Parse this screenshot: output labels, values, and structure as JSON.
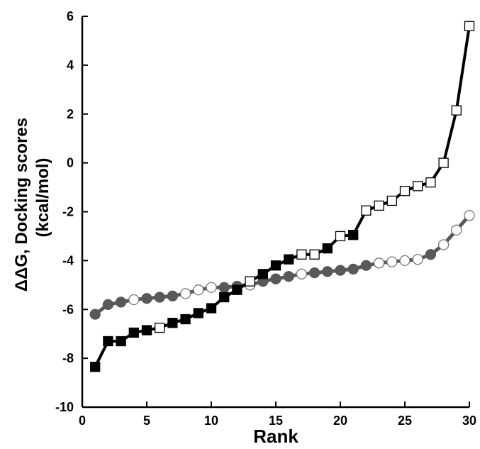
{
  "chart_data": {
    "type": "line",
    "xlabel": "Rank",
    "ylabel_line1": "ΔΔG, Docking scores",
    "ylabel_line2": "(kcal/mol)",
    "xlim": [
      0,
      30
    ],
    "ylim": [
      -10,
      6
    ],
    "xticks": [
      0,
      5,
      10,
      15,
      20,
      25,
      30
    ],
    "yticks": [
      -10,
      -8,
      -6,
      -4,
      -2,
      0,
      2,
      4,
      6
    ],
    "grid": false,
    "series": [
      {
        "color": "#000000",
        "marker": "square",
        "x": [
          1,
          2,
          3,
          4,
          5,
          6,
          7,
          8,
          9,
          10,
          11,
          12,
          13,
          14,
          15,
          16,
          17,
          18,
          19,
          20,
          21,
          22,
          23,
          24,
          25,
          26,
          27,
          28,
          29,
          30
        ],
        "y": [
          -8.35,
          -7.3,
          -7.3,
          -6.95,
          -6.85,
          -6.75,
          -6.55,
          -6.4,
          -6.15,
          -5.95,
          -5.5,
          -5.2,
          -4.85,
          -4.55,
          -4.2,
          -3.95,
          -3.75,
          -3.75,
          -3.5,
          -3.0,
          -2.95,
          -1.95,
          -1.75,
          -1.55,
          -1.15,
          -0.95,
          -0.8,
          0.0,
          2.15,
          5.6
        ],
        "filled": [
          true,
          true,
          true,
          true,
          true,
          false,
          true,
          true,
          true,
          true,
          true,
          true,
          false,
          true,
          true,
          true,
          false,
          false,
          true,
          false,
          true,
          false,
          false,
          false,
          false,
          false,
          false,
          false,
          false,
          false
        ]
      },
      {
        "color": "#585858",
        "marker": "circle",
        "x": [
          1,
          2,
          3,
          4,
          5,
          6,
          7,
          8,
          9,
          10,
          11,
          12,
          13,
          14,
          15,
          16,
          17,
          18,
          19,
          20,
          21,
          22,
          23,
          24,
          25,
          26,
          27,
          28,
          29,
          30
        ],
        "y": [
          -6.2,
          -5.8,
          -5.7,
          -5.6,
          -5.55,
          -5.5,
          -5.45,
          -5.35,
          -5.2,
          -5.1,
          -5.1,
          -5.05,
          -5.0,
          -4.85,
          -4.75,
          -4.65,
          -4.55,
          -4.5,
          -4.45,
          -4.4,
          -4.35,
          -4.2,
          -4.1,
          -4.05,
          -4.0,
          -3.95,
          -3.75,
          -3.35,
          -2.75,
          -2.15
        ],
        "filled": [
          true,
          true,
          true,
          false,
          true,
          true,
          true,
          false,
          false,
          false,
          true,
          true,
          false,
          true,
          true,
          true,
          false,
          true,
          true,
          true,
          true,
          true,
          false,
          false,
          false,
          false,
          true,
          false,
          false,
          false
        ]
      }
    ]
  }
}
